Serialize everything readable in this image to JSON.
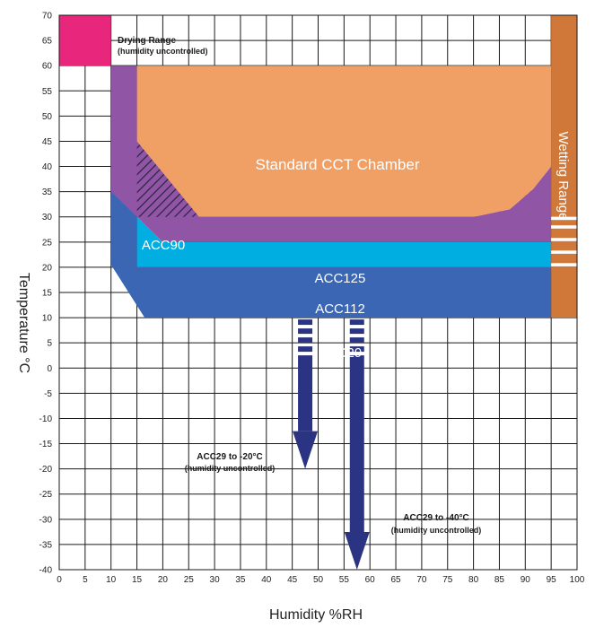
{
  "chart_data": {
    "type": "area",
    "title": "",
    "xlabel": "Humidity %RH",
    "ylabel": "Temperature °C",
    "xlim": [
      0,
      100
    ],
    "ylim": [
      -40,
      70
    ],
    "x_ticks": [
      0,
      5,
      10,
      15,
      20,
      25,
      30,
      35,
      40,
      45,
      50,
      55,
      60,
      65,
      70,
      75,
      80,
      85,
      90,
      95,
      100
    ],
    "y_ticks": [
      70,
      65,
      60,
      55,
      50,
      45,
      40,
      35,
      30,
      25,
      20,
      15,
      10,
      5,
      0,
      -5,
      -10,
      -15,
      -20,
      -25,
      -30,
      -35,
      -40
    ],
    "grid": true,
    "colors": {
      "drying": "#e8267c",
      "wetting": "#d0773a",
      "standard": "#f0a065",
      "acc125": "#9155a6",
      "acc112": "#00aee2",
      "acc29": "#3a66b4",
      "arrows": "#2b3483",
      "hatch": "#2a2040"
    },
    "regions": [
      {
        "name": "Drying Range",
        "subtitle": "(humidity uncontrolled)",
        "polygon": [
          [
            0,
            60
          ],
          [
            10,
            60
          ],
          [
            10,
            70
          ],
          [
            0,
            70
          ]
        ]
      },
      {
        "name": "Wetting Range",
        "polygon": [
          [
            95,
            10
          ],
          [
            95,
            70
          ],
          [
            100,
            70
          ],
          [
            100,
            10
          ]
        ],
        "stripe_temps_c": [
          20.5,
          23,
          25.5,
          28,
          29.7
        ]
      },
      {
        "name": "ACC29",
        "polygon": [
          [
            10,
            35
          ],
          [
            15,
            35
          ],
          [
            15,
            20
          ],
          [
            95,
            20
          ],
          [
            95,
            10
          ],
          [
            16.5,
            10
          ],
          [
            10,
            20.5
          ]
        ]
      },
      {
        "name": "ACC112",
        "polygon": [
          [
            15,
            20
          ],
          [
            15,
            30
          ],
          [
            20,
            25
          ],
          [
            95,
            25
          ],
          [
            95,
            20
          ]
        ]
      },
      {
        "name": "ACC125",
        "polygon": [
          [
            10,
            60
          ],
          [
            15,
            60
          ],
          [
            15,
            45
          ],
          [
            27,
            30
          ],
          [
            80,
            30
          ],
          [
            87,
            31.5
          ],
          [
            91.5,
            35.5
          ],
          [
            95,
            40
          ],
          [
            95,
            25
          ],
          [
            20,
            25
          ],
          [
            15,
            30
          ],
          [
            10,
            35
          ]
        ]
      },
      {
        "name": "Standard CCT Chamber",
        "polygon": [
          [
            15,
            60
          ],
          [
            95,
            60
          ],
          [
            95,
            40
          ],
          [
            91.5,
            35.5
          ],
          [
            87,
            31.5
          ],
          [
            80,
            30
          ],
          [
            27,
            30
          ],
          [
            15,
            45
          ]
        ]
      },
      {
        "name": "ACC90",
        "polygon": [
          [
            15,
            45
          ],
          [
            27,
            30
          ],
          [
            15,
            30
          ]
        ]
      }
    ],
    "extensions": [
      {
        "name": "ACC29 to -20°C",
        "subtitle": "(humidity uncontrolled)",
        "x": 47.5,
        "from_temp": 10,
        "to_temp": -20
      },
      {
        "name": "ACC29 to -40°C",
        "subtitle": "(humidity uncontrolled)",
        "x": 57.5,
        "from_temp": 10,
        "to_temp": -40
      }
    ]
  }
}
